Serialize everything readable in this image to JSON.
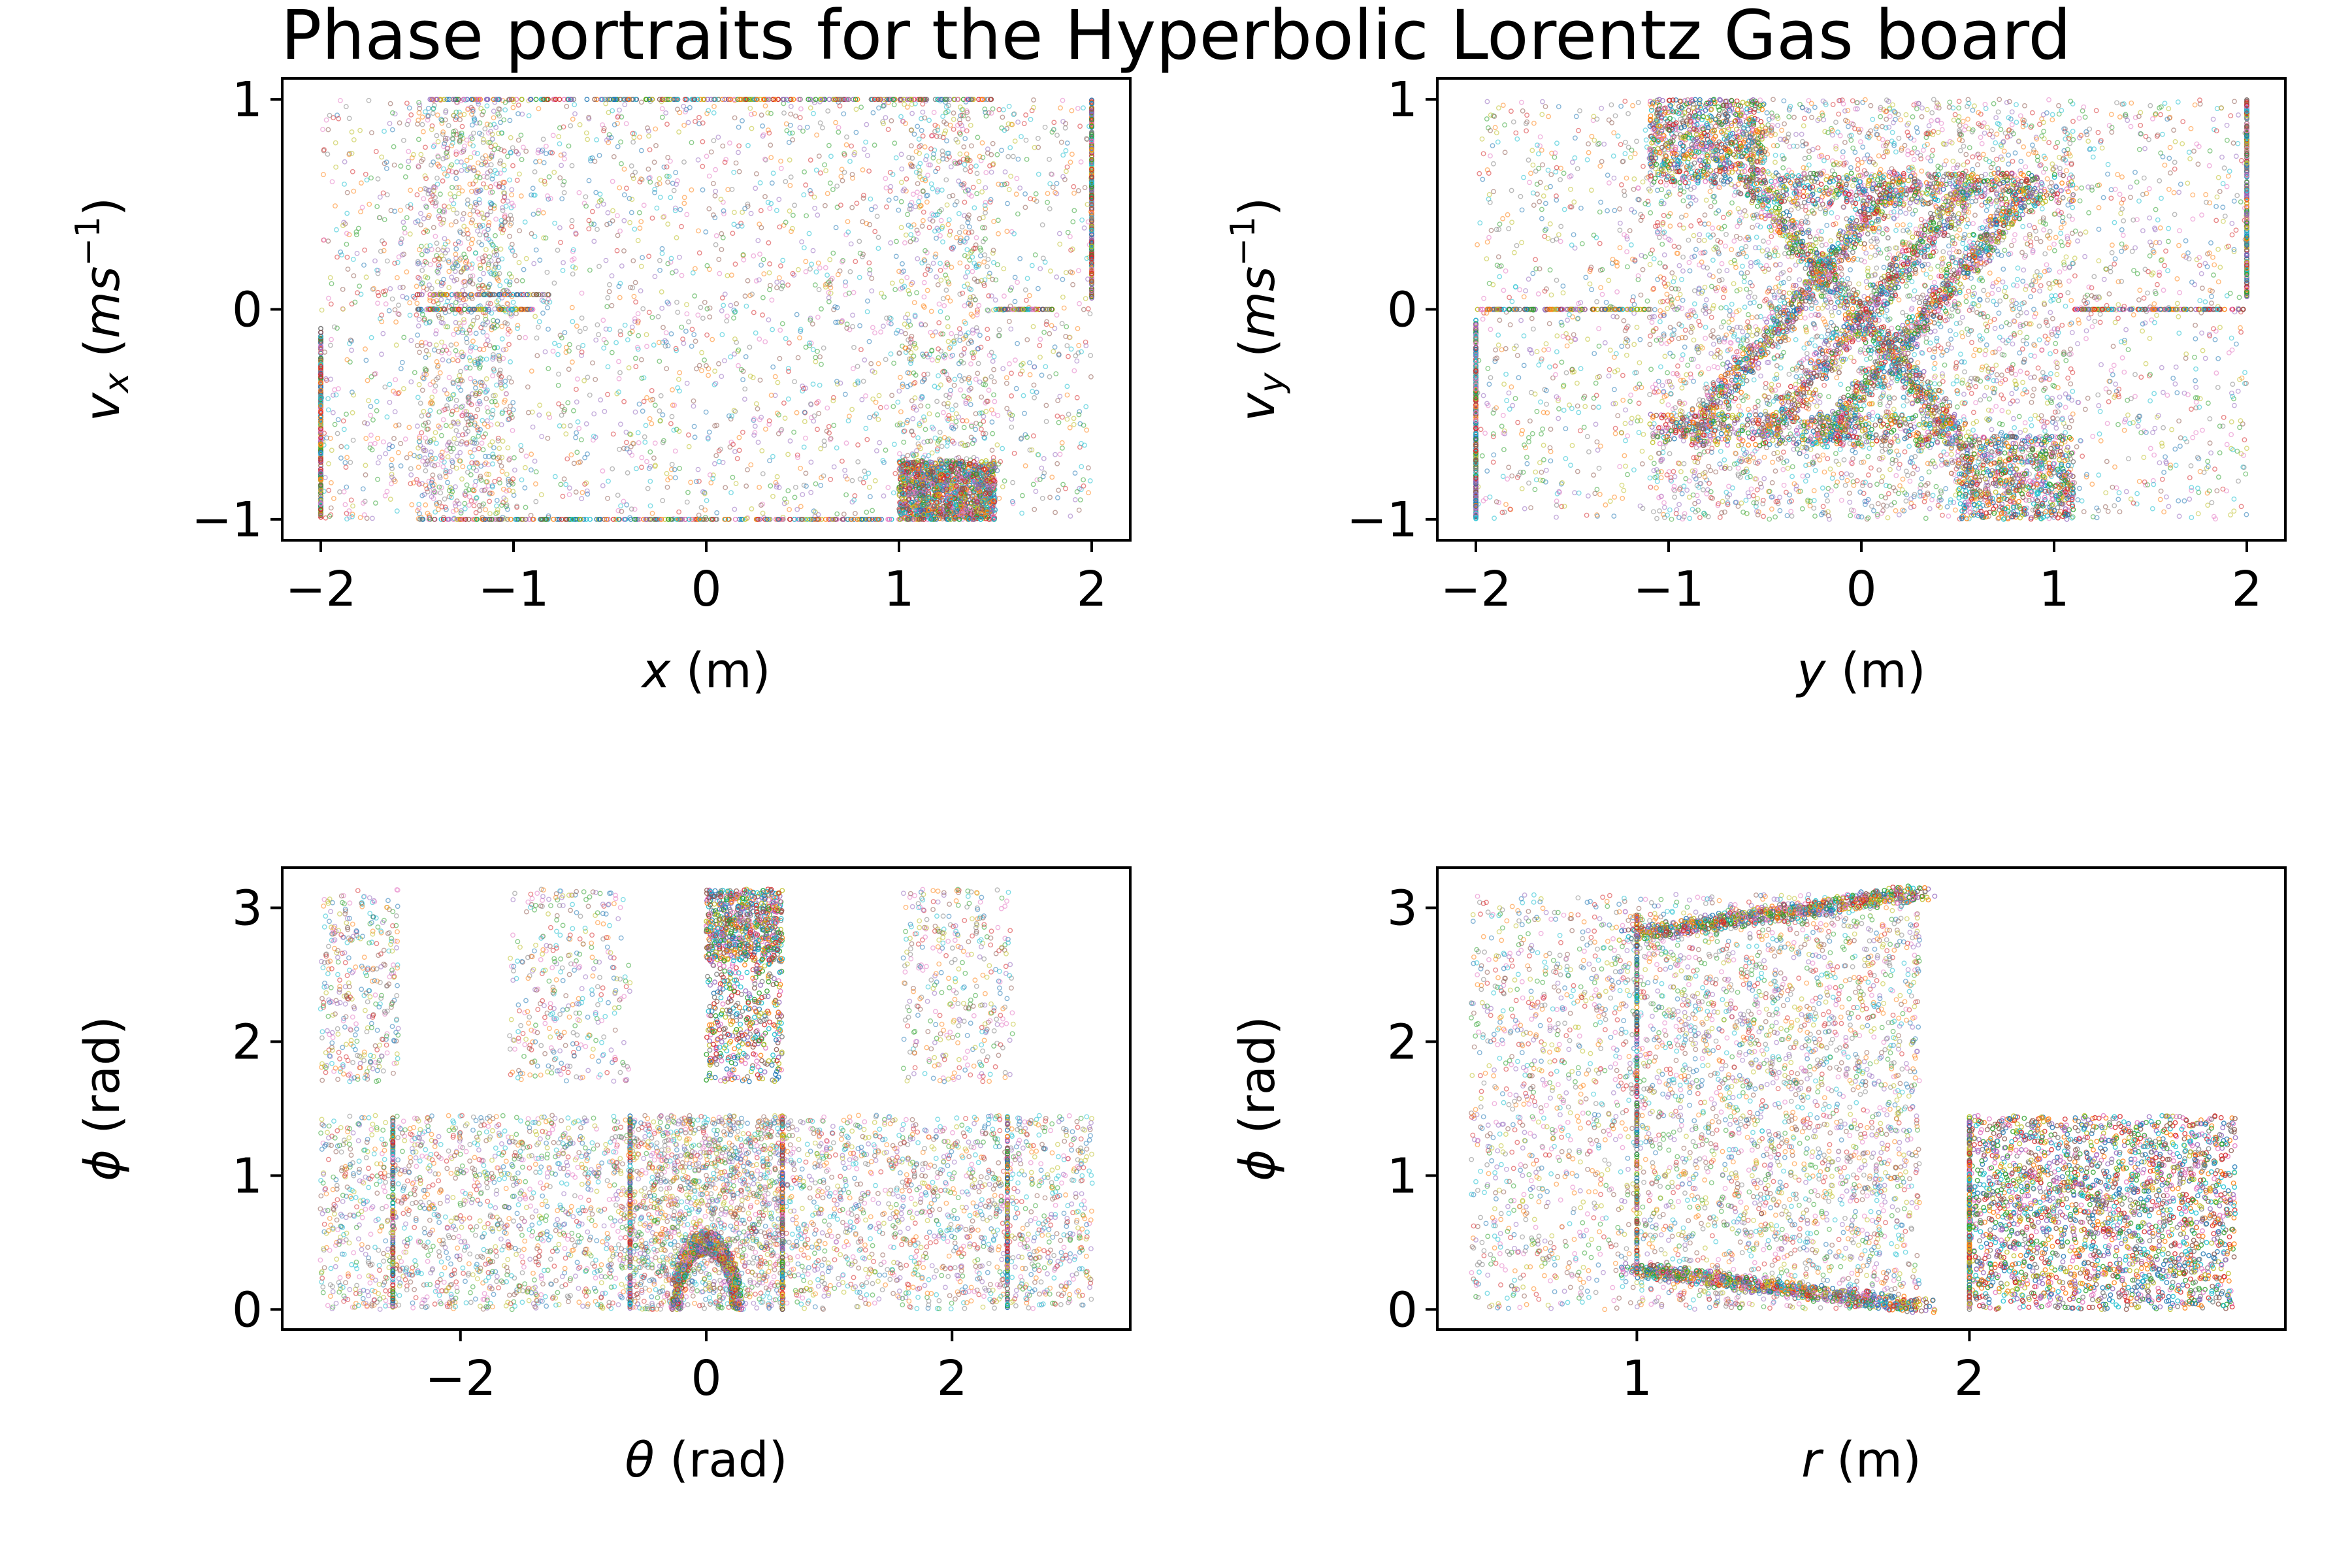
{
  "title": "Phase portraits for the Hyperbolic Lorentz Gas board",
  "palette": [
    "#1f77b4",
    "#ff7f0e",
    "#2ca02c",
    "#d62728",
    "#9467bd",
    "#8c564b",
    "#e377c2",
    "#7f7f7f",
    "#bcbd22",
    "#17becf"
  ],
  "chart_data": [
    {
      "type": "scatter",
      "xlabel": {
        "var": "x",
        "unit": "(m)"
      },
      "ylabel": {
        "var": "v",
        "sub": "x",
        "unit_pre": "(ms",
        "sup": "−1",
        "unit_post": ")"
      },
      "xlim": [
        -2.2,
        2.2
      ],
      "ylim": [
        -1.1,
        1.1
      ],
      "xticks": [
        -2,
        -1,
        0,
        1,
        2
      ],
      "xtick_labels": [
        "−2",
        "−1",
        "0",
        "1",
        "2"
      ],
      "yticks": [
        -1,
        0,
        1
      ],
      "ytick_labels": [
        "−1",
        "0",
        "1"
      ],
      "grid": false,
      "series_note": "many trajectories drawn as small hollow circles, default color cycle",
      "regions": [
        {
          "kind": "uniform",
          "x": [
            -2.0,
            2.0
          ],
          "y": [
            -1.0,
            1.0
          ],
          "count": 2600
        },
        {
          "kind": "uniform",
          "x": [
            -1.5,
            -1.0
          ],
          "y": [
            -1.0,
            1.0
          ],
          "count": 900
        },
        {
          "kind": "uniform",
          "x": [
            1.0,
            1.5
          ],
          "y": [
            -1.0,
            1.0
          ],
          "count": 500
        },
        {
          "kind": "dense",
          "x": [
            1.0,
            1.5
          ],
          "y": [
            -1.0,
            -0.72
          ],
          "count": 1200
        },
        {
          "kind": "line",
          "x": [
            -2.0,
            -2.0
          ],
          "y": [
            -1.0,
            -0.08
          ],
          "count": 260
        },
        {
          "kind": "line",
          "x": [
            2.0,
            2.0
          ],
          "y": [
            0.05,
            1.0
          ],
          "count": 260
        },
        {
          "kind": "line",
          "x": [
            -1.45,
            1.5
          ],
          "y": [
            1.0,
            1.0
          ],
          "count": 300
        },
        {
          "kind": "line",
          "x": [
            -1.5,
            1.5
          ],
          "y": [
            -1.0,
            -1.0
          ],
          "count": 300
        },
        {
          "kind": "line",
          "x": [
            1.5,
            1.8
          ],
          "y": [
            0.0,
            0.0
          ],
          "count": 60
        },
        {
          "kind": "line",
          "x": [
            -1.5,
            -0.8
          ],
          "y": [
            0.07,
            0.07
          ],
          "count": 80
        },
        {
          "kind": "line",
          "x": [
            -1.5,
            -0.9
          ],
          "y": [
            0.0,
            0.0
          ],
          "count": 80
        }
      ]
    },
    {
      "type": "scatter",
      "xlabel": {
        "var": "y",
        "unit": "(m)"
      },
      "ylabel": {
        "var": "v",
        "sub": "y",
        "unit_pre": "(ms",
        "sup": "−1",
        "unit_post": ")"
      },
      "xlim": [
        -2.2,
        2.2
      ],
      "ylim": [
        -1.1,
        1.1
      ],
      "xticks": [
        -2,
        -1,
        0,
        1,
        2
      ],
      "xtick_labels": [
        "−2",
        "−1",
        "0",
        "1",
        "2"
      ],
      "yticks": [
        -1,
        0,
        1
      ],
      "ytick_labels": [
        "−1",
        "0",
        "1"
      ],
      "grid": false,
      "series_note": "many trajectories drawn as small hollow circles, default color cycle",
      "regions": [
        {
          "kind": "uniform",
          "x": [
            -2.0,
            2.0
          ],
          "y": [
            -1.0,
            1.0
          ],
          "count": 2600
        },
        {
          "kind": "uniform",
          "x": [
            -1.1,
            1.1
          ],
          "y": [
            -1.0,
            1.0
          ],
          "count": 2200
        },
        {
          "kind": "dense",
          "x": [
            -1.1,
            -0.5
          ],
          "y": [
            0.6,
            1.0
          ],
          "count": 700
        },
        {
          "kind": "dense",
          "x": [
            0.5,
            1.1
          ],
          "y": [
            -1.0,
            -0.6
          ],
          "count": 700
        },
        {
          "kind": "dense",
          "x": [
            -0.5,
            1.1
          ],
          "y": [
            0.5,
            0.65
          ],
          "count": 500
        },
        {
          "kind": "dense",
          "x": [
            -1.1,
            0.5
          ],
          "y": [
            -0.65,
            -0.5
          ],
          "count": 500
        },
        {
          "kind": "band",
          "x0": -0.9,
          "y0": -0.6,
          "x1": 0.2,
          "y1": 0.62,
          "count": 700
        },
        {
          "kind": "band",
          "x0": -0.2,
          "y0": -0.62,
          "x1": 0.9,
          "y1": 0.6,
          "count": 700
        },
        {
          "kind": "band",
          "x0": -0.6,
          "y0": 0.62,
          "x1": 0.5,
          "y1": -0.6,
          "count": 600
        },
        {
          "kind": "band",
          "x0": 0.6,
          "y0": 0.62,
          "x1": -0.5,
          "y1": -0.6,
          "count": 600
        },
        {
          "kind": "line",
          "x": [
            -2.0,
            -2.0
          ],
          "y": [
            -1.0,
            -0.05
          ],
          "count": 260
        },
        {
          "kind": "line",
          "x": [
            2.0,
            2.0
          ],
          "y": [
            0.05,
            1.0
          ],
          "count": 260
        },
        {
          "kind": "line",
          "x": [
            -2.0,
            -1.1
          ],
          "y": [
            0.0,
            0.0
          ],
          "count": 120
        },
        {
          "kind": "line",
          "x": [
            1.1,
            2.0
          ],
          "y": [
            0.0,
            0.0
          ],
          "count": 120
        }
      ]
    },
    {
      "type": "scatter",
      "xlabel": {
        "var": "θ",
        "unit": "(rad)"
      },
      "ylabel": {
        "var": "ϕ",
        "unit": "(rad)"
      },
      "xlim": [
        -3.45,
        3.45
      ],
      "ylim": [
        -0.15,
        3.3
      ],
      "xticks": [
        -2,
        0,
        2
      ],
      "xtick_labels": [
        "−2",
        "0",
        "2"
      ],
      "yticks": [
        0,
        1,
        2,
        3
      ],
      "ytick_labels": [
        "0",
        "1",
        "2",
        "3"
      ],
      "grid": false,
      "series_note": "many trajectories drawn as small hollow circles, default color cycle",
      "regions": [
        {
          "kind": "uniform",
          "x": [
            -3.14,
            3.14
          ],
          "y": [
            0.0,
            1.45
          ],
          "count": 3600
        },
        {
          "kind": "uniform",
          "x": [
            -3.14,
            -2.5
          ],
          "y": [
            1.7,
            3.14
          ],
          "count": 350
        },
        {
          "kind": "uniform",
          "x": [
            -1.6,
            -0.62
          ],
          "y": [
            1.7,
            3.14
          ],
          "count": 350
        },
        {
          "kind": "uniform",
          "x": [
            1.6,
            2.5
          ],
          "y": [
            1.7,
            3.14
          ],
          "count": 350
        },
        {
          "kind": "uniform",
          "x": [
            -0.62,
            0.62
          ],
          "y": [
            0.0,
            1.45
          ],
          "count": 900
        },
        {
          "kind": "dense",
          "x": [
            0.0,
            0.62
          ],
          "y": [
            1.7,
            3.14
          ],
          "count": 600
        },
        {
          "kind": "dense",
          "x": [
            0.0,
            0.62
          ],
          "y": [
            2.6,
            3.14
          ],
          "count": 500
        },
        {
          "kind": "arch",
          "cx": 0.0,
          "cy": 0.0,
          "rx": 0.25,
          "ry": 0.5,
          "count": 700
        },
        {
          "kind": "line",
          "x": [
            -2.55,
            -2.55
          ],
          "y": [
            0.0,
            1.45
          ],
          "count": 160
        },
        {
          "kind": "line",
          "x": [
            2.45,
            2.45
          ],
          "y": [
            0.0,
            1.45
          ],
          "count": 160
        },
        {
          "kind": "line",
          "x": [
            -0.62,
            -0.62
          ],
          "y": [
            0.0,
            1.45
          ],
          "count": 160
        },
        {
          "kind": "line",
          "x": [
            0.62,
            0.62
          ],
          "y": [
            0.0,
            1.45
          ],
          "count": 160
        }
      ]
    },
    {
      "type": "scatter",
      "xlabel": {
        "var": "r",
        "unit": "(m)"
      },
      "ylabel": {
        "var": "ϕ",
        "unit": "(rad)"
      },
      "xlim": [
        0.4,
        2.95
      ],
      "ylim": [
        -0.15,
        3.3
      ],
      "xticks": [
        1,
        2
      ],
      "xtick_labels": [
        "1",
        "2"
      ],
      "yticks": [
        0,
        1,
        2,
        3
      ],
      "ytick_labels": [
        "0",
        "1",
        "2",
        "3"
      ],
      "grid": false,
      "series_note": "many trajectories drawn as small hollow circles, default color cycle",
      "regions": [
        {
          "kind": "uniform",
          "x": [
            0.5,
            1.85
          ],
          "y": [
            0.0,
            3.1
          ],
          "count": 2800
        },
        {
          "kind": "uniform",
          "x": [
            1.0,
            1.85
          ],
          "y": [
            0.0,
            3.1
          ],
          "count": 900
        },
        {
          "kind": "dense",
          "x": [
            2.0,
            2.8
          ],
          "y": [
            0.0,
            1.45
          ],
          "count": 2400
        },
        {
          "kind": "band",
          "x0": 1.0,
          "y0": 2.8,
          "x1": 1.85,
          "y1": 3.12,
          "count": 800
        },
        {
          "kind": "band",
          "x0": 1.0,
          "y0": 0.3,
          "x1": 1.85,
          "y1": 0.02,
          "count": 800
        },
        {
          "kind": "line",
          "x": [
            1.0,
            1.0
          ],
          "y": [
            0.25,
            2.95
          ],
          "count": 260
        },
        {
          "kind": "line",
          "x": [
            2.0,
            2.0
          ],
          "y": [
            0.0,
            1.45
          ],
          "count": 200
        }
      ]
    }
  ]
}
